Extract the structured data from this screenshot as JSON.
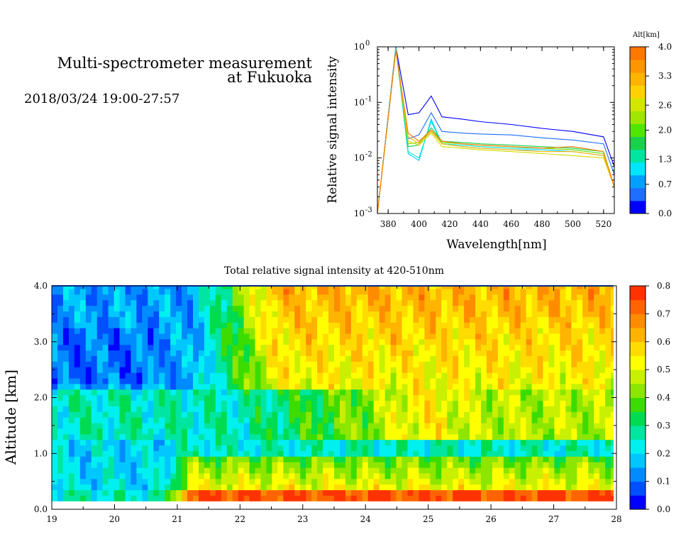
{
  "header": {
    "title_line1": "Multi-spectrometer measurement",
    "title_line2": "at Fukuoka",
    "date_range": "2018/03/24 19:00-27:57"
  },
  "chart_data": [
    {
      "type": "line",
      "scale_y": "log",
      "xlabel": "Wavelength[nm]",
      "ylabel": "Relative signal intensity",
      "xlim": [
        373,
        527
      ],
      "ylim": [
        0.001,
        1
      ],
      "xticks": [
        "380",
        "400",
        "420",
        "440",
        "460",
        "480",
        "500",
        "520"
      ],
      "ytick_exponents": [
        "0",
        "-1",
        "-2",
        "-3"
      ],
      "x": [
        373,
        385,
        393,
        400,
        408,
        415,
        428,
        440,
        460,
        480,
        500,
        520,
        527
      ],
      "series": [
        {
          "color": "#0000ff",
          "values": [
            0.001,
            1.0,
            0.06,
            0.065,
            0.13,
            0.055,
            0.05,
            0.045,
            0.04,
            0.034,
            0.03,
            0.024,
            0.007
          ]
        },
        {
          "color": "#1e6eff",
          "values": [
            0.001,
            1.0,
            0.022,
            0.026,
            0.065,
            0.03,
            0.028,
            0.027,
            0.026,
            0.023,
            0.021,
            0.018,
            0.005
          ]
        },
        {
          "color": "#00ccff",
          "values": [
            0.001,
            0.95,
            0.012,
            0.009,
            0.05,
            0.018,
            0.016,
            0.015,
            0.014,
            0.014,
            0.013,
            0.011,
            0.003
          ]
        },
        {
          "color": "#00e6c8",
          "values": [
            0.001,
            0.95,
            0.013,
            0.01,
            0.045,
            0.018,
            0.017,
            0.016,
            0.015,
            0.015,
            0.014,
            0.012,
            0.003
          ]
        },
        {
          "color": "#19d24b",
          "values": [
            0.001,
            0.9,
            0.016,
            0.017,
            0.035,
            0.02,
            0.019,
            0.018,
            0.017,
            0.016,
            0.015,
            0.013,
            0.003
          ]
        },
        {
          "color": "#7ddc00",
          "values": [
            0.001,
            0.9,
            0.018,
            0.019,
            0.03,
            0.019,
            0.018,
            0.017,
            0.016,
            0.015,
            0.014,
            0.012,
            0.003
          ]
        },
        {
          "color": "#d2dc00",
          "values": [
            0.001,
            0.85,
            0.02,
            0.017,
            0.028,
            0.016,
            0.015,
            0.014,
            0.013,
            0.012,
            0.011,
            0.01,
            0.003
          ]
        },
        {
          "color": "#ffb400",
          "values": [
            0.001,
            0.85,
            0.024,
            0.018,
            0.03,
            0.018,
            0.016,
            0.015,
            0.014,
            0.013,
            0.013,
            0.011,
            0.003
          ]
        },
        {
          "color": "#ff7800",
          "values": [
            0.001,
            0.85,
            0.028,
            0.02,
            0.032,
            0.02,
            0.018,
            0.017,
            0.016,
            0.015,
            0.016,
            0.013,
            0.003
          ]
        }
      ],
      "colorbar": {
        "label": "Alt[km]",
        "vmin": 0,
        "vmax": 4,
        "ticks": [
          "4.0",
          "3.3",
          "2.6",
          "2.0",
          "1.3",
          "0.7",
          "0.0"
        ],
        "colors": [
          "#0000ff",
          "#1e6eff",
          "#00a0ff",
          "#00e6ff",
          "#00e6a0",
          "#19d24b",
          "#50e600",
          "#a0e600",
          "#d2e600",
          "#ffd200",
          "#ffb400",
          "#ff9600",
          "#ff7800"
        ]
      }
    },
    {
      "type": "heatmap",
      "title": "Total relative signal intensity at 420-510nm",
      "xlabel": "",
      "ylabel": "Altitude [km]",
      "xlim": [
        19,
        28
      ],
      "ylim": [
        0,
        4
      ],
      "xticks": [
        "19",
        "20",
        "21",
        "22",
        "23",
        "24",
        "25",
        "26",
        "27",
        "28"
      ],
      "yticks": [
        "0.0",
        "1.0",
        "2.0",
        "3.0",
        "4.0"
      ],
      "data_extent_x": [
        19,
        27.95
      ],
      "data_extent_y": [
        0.15,
        4.0
      ],
      "colorbar": {
        "vmin": 0,
        "vmax": 0.8,
        "ticks": [
          "0.8",
          "0.7",
          "0.6",
          "0.5",
          "0.4",
          "0.3",
          "0.2",
          "0.1",
          "0.0"
        ],
        "colors": [
          "#0000ff",
          "#0050ff",
          "#008cff",
          "#00c8ff",
          "#00f0f0",
          "#00e6a0",
          "#00dc50",
          "#3cdc00",
          "#8ce600",
          "#c8f000",
          "#ffff00",
          "#ffdc00",
          "#ffb400",
          "#ff8c00",
          "#ff6400",
          "#ff3200"
        ]
      }
    }
  ]
}
